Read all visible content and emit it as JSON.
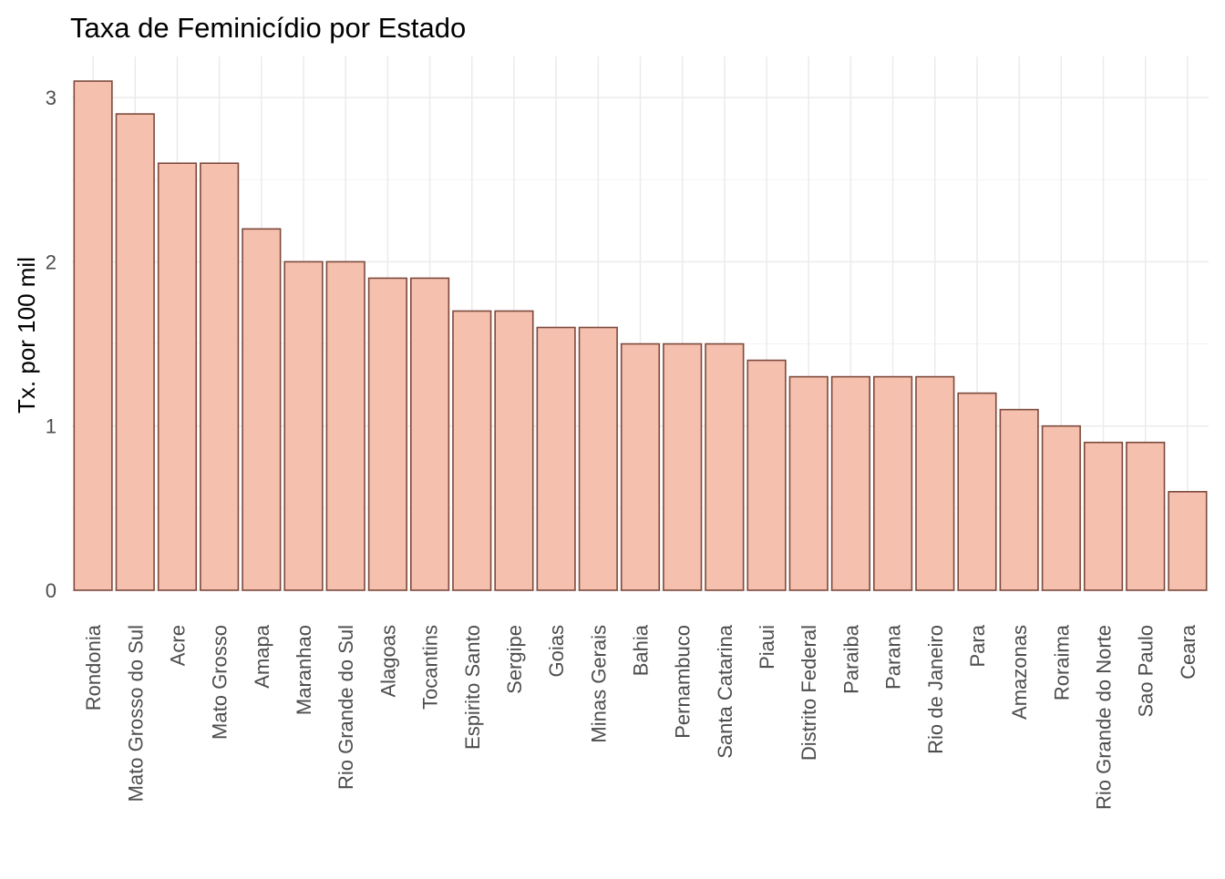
{
  "chart_data": {
    "type": "bar",
    "title": "Taxa de Feminicídio por Estado",
    "xlabel": "",
    "ylabel": "Tx. por 100 mil",
    "ylim": [
      0,
      3.25
    ],
    "yticks": [
      0,
      1,
      2,
      3
    ],
    "grid": true,
    "categories": [
      "Rondonia",
      "Mato Grosso do Sul",
      "Acre",
      "Mato Grosso",
      "Amapa",
      "Maranhao",
      "Rio Grande do Sul",
      "Alagoas",
      "Tocantins",
      "Espirito Santo",
      "Sergipe",
      "Goias",
      "Minas Gerais",
      "Bahia",
      "Pernambuco",
      "Santa Catarina",
      "Piaui",
      "Distrito Federal",
      "Paraiba",
      "Parana",
      "Rio de Janeiro",
      "Para",
      "Amazonas",
      "Roraima",
      "Rio Grande do Norte",
      "Sao Paulo",
      "Ceara"
    ],
    "values": [
      3.1,
      2.9,
      2.6,
      2.6,
      2.2,
      2.0,
      2.0,
      1.9,
      1.9,
      1.7,
      1.7,
      1.6,
      1.6,
      1.5,
      1.5,
      1.5,
      1.4,
      1.3,
      1.3,
      1.3,
      1.3,
      1.2,
      1.1,
      1.0,
      0.9,
      0.9,
      0.6
    ],
    "colors": {
      "bar_fill": "#f5c0ae",
      "bar_stroke": "#7d4a3c",
      "grid": "#ebebeb"
    }
  }
}
